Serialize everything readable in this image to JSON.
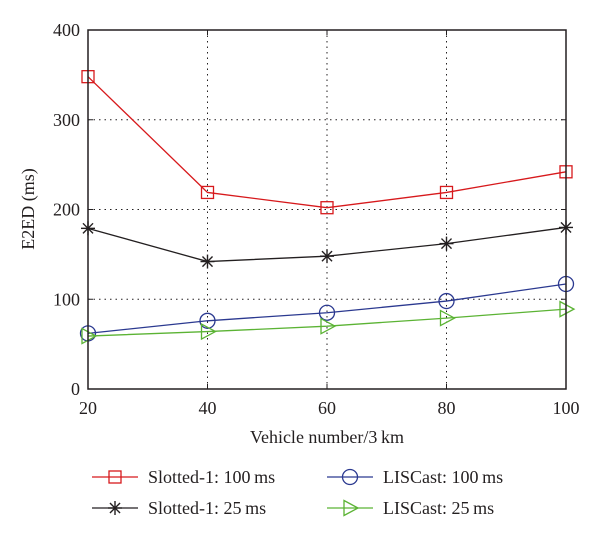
{
  "chart_data": {
    "type": "line",
    "xlabel": "Vehicle number/3 km",
    "ylabel": "E2ED (ms)",
    "x": [
      20,
      40,
      60,
      80,
      100
    ],
    "xlim": [
      20,
      100
    ],
    "ylim": [
      0,
      400
    ],
    "xticks": [
      "20",
      "40",
      "60",
      "80",
      "100"
    ],
    "yticks": [
      "0",
      "100",
      "200",
      "300",
      "400"
    ],
    "grid": true,
    "grid_style": "dotted",
    "legend_position": "bottom",
    "series": [
      {
        "name": "Slotted-1: 100 ms",
        "values": [
          348,
          219,
          202,
          219,
          242
        ],
        "color": "#d7191c",
        "marker": "square"
      },
      {
        "name": "Slotted-1: 25 ms",
        "values": [
          179,
          142,
          148,
          162,
          180
        ],
        "color": "#231f20",
        "marker": "asterisk"
      },
      {
        "name": "LISCast: 100 ms",
        "values": [
          62,
          76,
          85,
          98,
          117
        ],
        "color": "#2b3990",
        "marker": "circle"
      },
      {
        "name": "LISCast: 25 ms",
        "values": [
          59,
          64,
          70,
          79,
          89
        ],
        "color": "#5bb334",
        "marker": "triangle-right"
      }
    ]
  }
}
